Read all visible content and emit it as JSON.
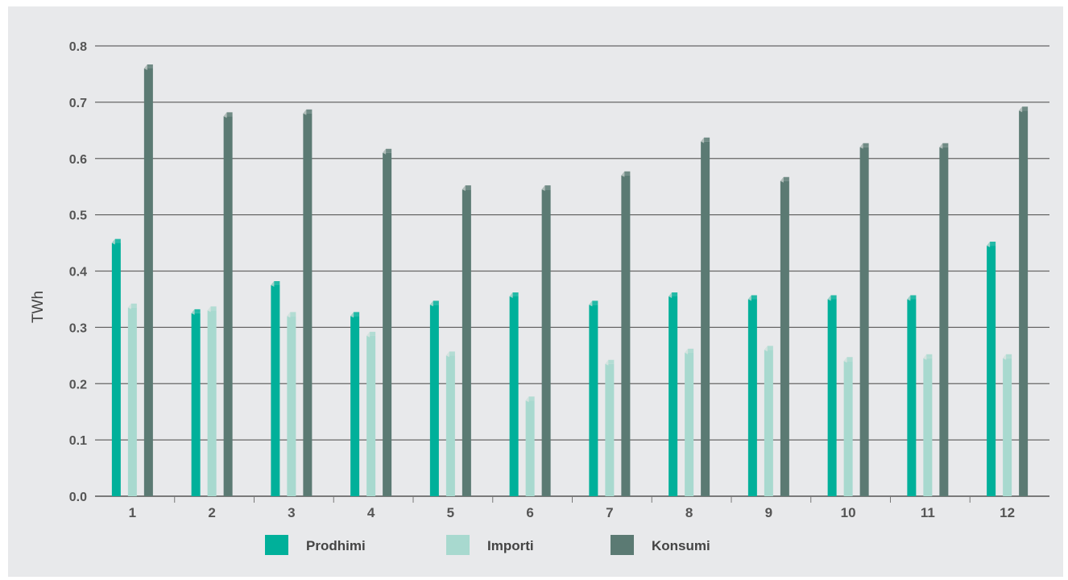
{
  "chart_data": {
    "type": "bar",
    "categories": [
      "1",
      "2",
      "3",
      "4",
      "5",
      "6",
      "7",
      "8",
      "9",
      "10",
      "11",
      "12"
    ],
    "series": [
      {
        "name": "Prodhimi",
        "color": "#00b09a",
        "values": [
          0.45,
          0.325,
          0.375,
          0.32,
          0.34,
          0.355,
          0.34,
          0.355,
          0.35,
          0.35,
          0.35,
          0.445
        ]
      },
      {
        "name": "Importi",
        "color": "#a8d9cf",
        "values": [
          0.335,
          0.33,
          0.32,
          0.285,
          0.25,
          0.17,
          0.235,
          0.255,
          0.26,
          0.24,
          0.245,
          0.245
        ]
      },
      {
        "name": "Konsumi",
        "color": "#5b7a73",
        "values": [
          0.76,
          0.675,
          0.68,
          0.61,
          0.545,
          0.545,
          0.57,
          0.63,
          0.56,
          0.62,
          0.62,
          0.685
        ]
      }
    ],
    "ylabel": "TWh",
    "ylim": [
      0,
      0.8
    ],
    "yticks": [
      "0.0",
      "0.1",
      "0.2",
      "0.3",
      "0.4",
      "0.5",
      "0.6",
      "0.7",
      "0.8"
    ],
    "grid": true,
    "legend_position": "bottom"
  }
}
